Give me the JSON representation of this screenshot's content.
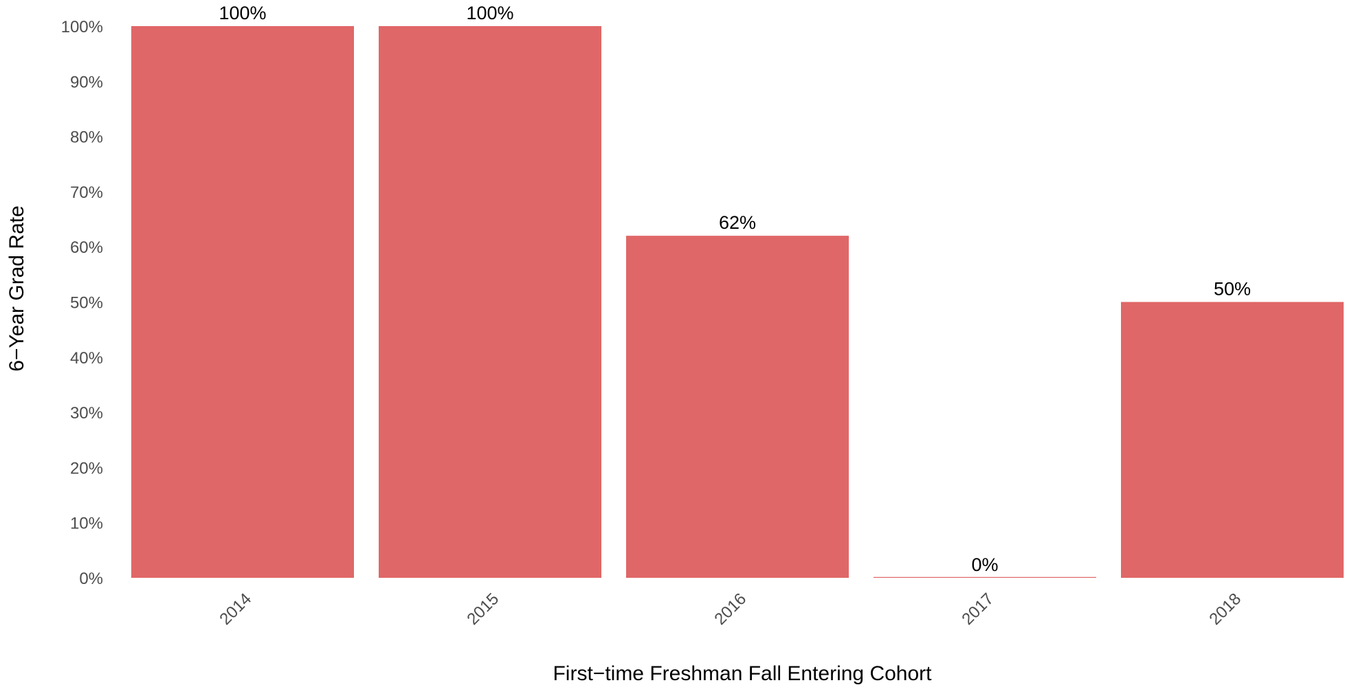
{
  "chart_data": {
    "type": "bar",
    "title": "",
    "xlabel": "First−time Freshman Fall Entering Cohort",
    "ylabel": "6−Year Grad Rate",
    "categories": [
      "2014",
      "2015",
      "2016",
      "2017",
      "2018"
    ],
    "values": [
      100,
      100,
      62,
      0,
      50
    ],
    "value_labels": [
      "100%",
      "100%",
      "62%",
      "0%",
      "50%"
    ],
    "ylim": [
      0,
      100
    ],
    "yticks": [
      0,
      10,
      20,
      30,
      40,
      50,
      60,
      70,
      80,
      90,
      100
    ],
    "ytick_labels": [
      "0%",
      "10%",
      "20%",
      "30%",
      "40%",
      "50%",
      "60%",
      "70%",
      "80%",
      "90%",
      "100%"
    ],
    "bar_color": "#e06767",
    "grid": false,
    "legend": "none"
  }
}
